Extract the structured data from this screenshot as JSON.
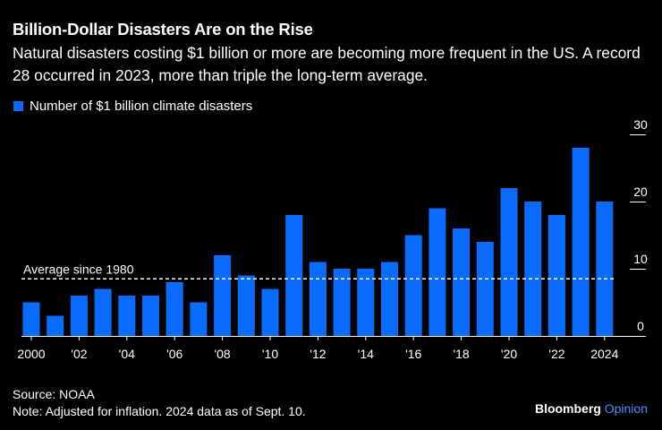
{
  "title": "Billion-Dollar Disasters Are on the Rise",
  "subtitle": "Natural disasters costing $1 billion or more are becoming more frequent in the US. A record 28 occurred in 2023, more than triple the long-term average.",
  "legend_label": "Number of $1 billion climate disasters",
  "source": "Source: NOAA",
  "note": "Note: Adjusted for inflation. 2024 data as of Sept. 10.",
  "brand_main": "Bloomberg",
  "brand_accent": "Opinion",
  "colors": {
    "bar": "#0a6cff",
    "background": "#000000",
    "text": "#ffffff",
    "accent": "#4f8bff"
  },
  "chart_data": {
    "type": "bar",
    "categories": [
      "2000",
      "2001",
      "2002",
      "2003",
      "2004",
      "2005",
      "2006",
      "2007",
      "2008",
      "2009",
      "2010",
      "2011",
      "2012",
      "2013",
      "2014",
      "2015",
      "2016",
      "2017",
      "2018",
      "2019",
      "2020",
      "2021",
      "2022",
      "2023",
      "2024"
    ],
    "values": [
      5,
      3,
      6,
      7,
      6,
      6,
      8,
      5,
      12,
      9,
      7,
      18,
      11,
      10,
      10,
      11,
      15,
      19,
      16,
      14,
      22,
      20,
      18,
      28,
      20
    ],
    "tick_labels": [
      "2000",
      "",
      "'02",
      "",
      "'04",
      "",
      "'06",
      "",
      "'08",
      "",
      "'10",
      "",
      "'12",
      "",
      "'14",
      "",
      "'16",
      "",
      "'18",
      "",
      "'20",
      "",
      "'22",
      "",
      "2024"
    ],
    "ylim": [
      0,
      30
    ],
    "yticks": [
      0,
      10,
      20,
      30
    ],
    "y_axis_position": "right",
    "average": {
      "value": 8.5,
      "label": "Average since 1980"
    },
    "grid": false,
    "legend_position": "top-left"
  }
}
